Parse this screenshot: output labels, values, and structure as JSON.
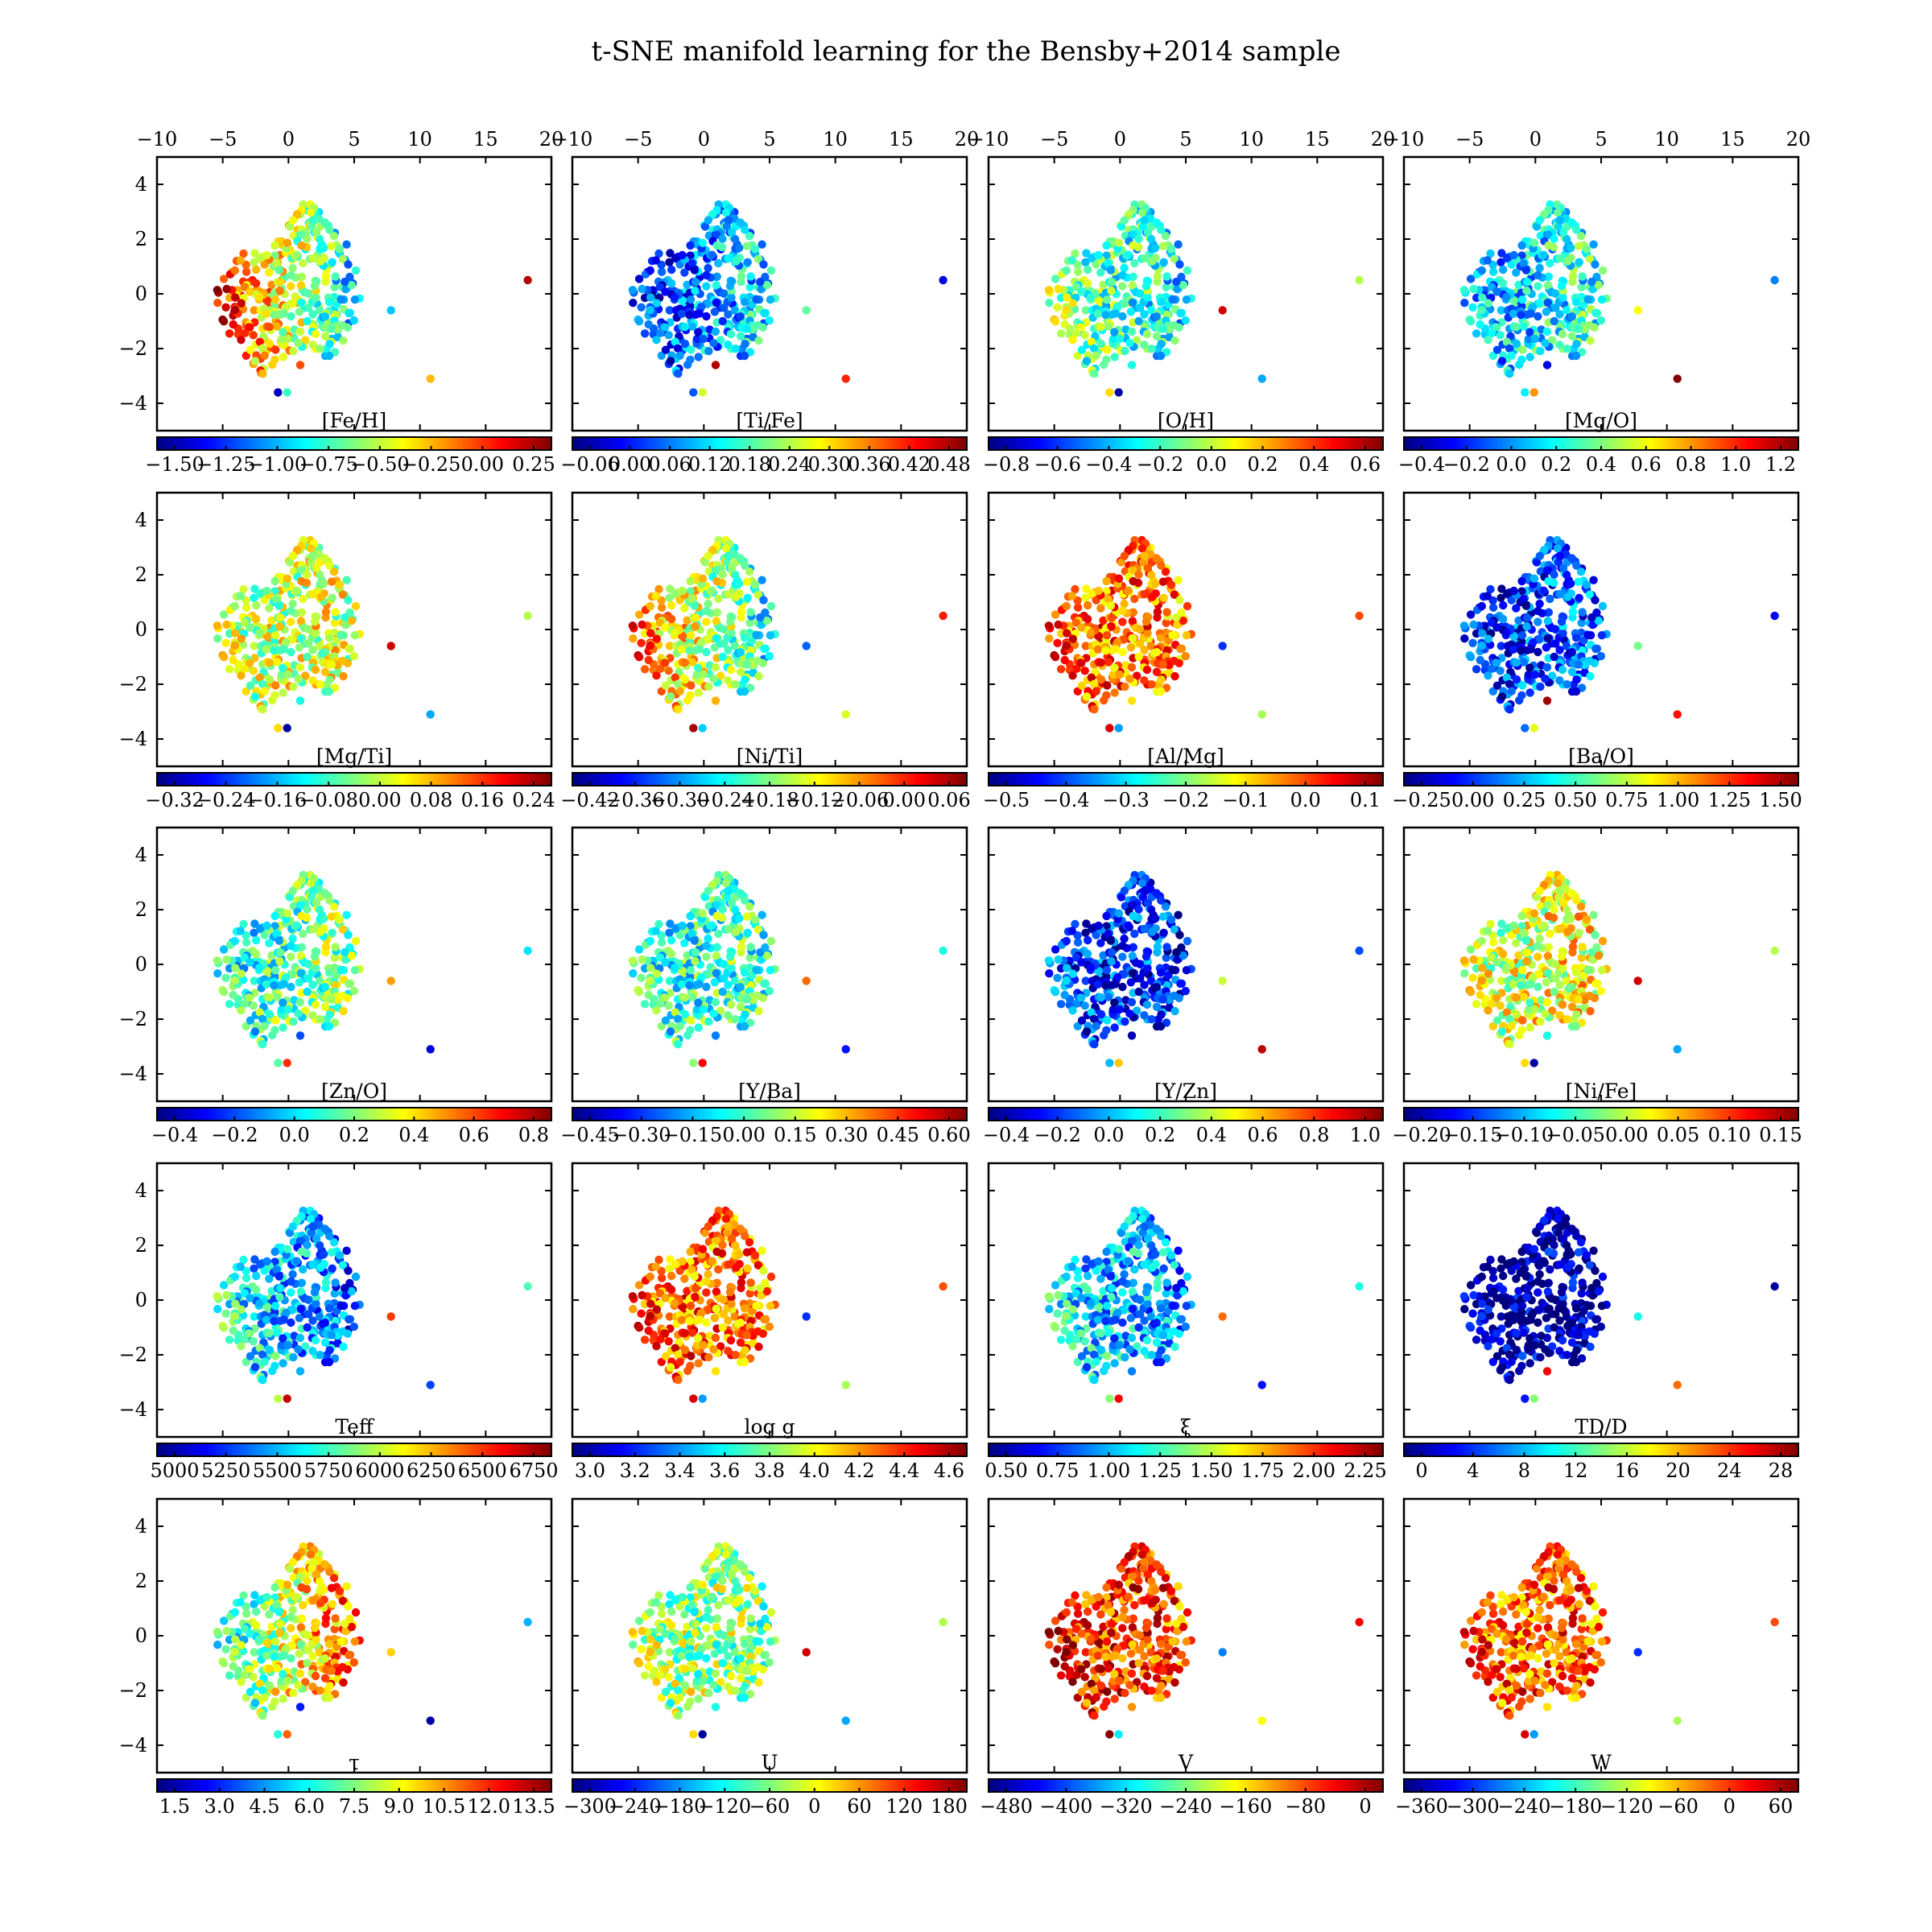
{
  "figure": {
    "title": "t-SNE manifold learning for the Bensby+2014 sample"
  },
  "chart_data": {
    "type": "scatter",
    "title": "t-SNE manifold learning for the Bensby+2014 sample",
    "layout": "5 rows x 4 columns of panels sharing axes",
    "colormap": [
      "#00007f",
      "#0000ff",
      "#007fff",
      "#00ffff",
      "#7fff7f",
      "#ffff00",
      "#ff7f00",
      "#ff0000",
      "#7f0000"
    ],
    "xlim": [
      -10,
      20
    ],
    "ylim": [
      -5,
      5
    ],
    "x_ticks": [
      "−10",
      "−5",
      "0",
      "5",
      "10",
      "15",
      "20"
    ],
    "x_tick_values": [
      -10,
      -5,
      0,
      5,
      10,
      15,
      20
    ],
    "y_ticks": [
      "4",
      "2",
      "0",
      "−2",
      "−4"
    ],
    "y_tick_values": [
      4,
      2,
      0,
      -2,
      -4
    ],
    "grid": false,
    "panels": [
      {
        "label": "[Fe/H]",
        "cbar_ticks": [
          "−1.50",
          "−1.25",
          "−1.00",
          "−0.75",
          "−0.50",
          "−0.25",
          "0.00",
          "0.25"
        ],
        "gradient": [
          0.95,
          0.3
        ]
      },
      {
        "label": "[Ti/Fe]",
        "cbar_ticks": [
          "−0.06",
          "0.00",
          "0.06",
          "0.12",
          "0.18",
          "0.24",
          "0.30",
          "0.36",
          "0.42",
          "0.48"
        ],
        "gradient": [
          0.1,
          0.4
        ]
      },
      {
        "label": "[O/H]",
        "cbar_ticks": [
          "−0.8",
          "−0.6",
          "−0.4",
          "−0.2",
          "0.0",
          "0.2",
          "0.4",
          "0.6"
        ],
        "gradient": [
          0.55,
          0.35
        ]
      },
      {
        "label": "[Mg/O]",
        "cbar_ticks": [
          "−0.4",
          "−0.2",
          "0.0",
          "0.2",
          "0.4",
          "0.6",
          "0.8",
          "1.0",
          "1.2"
        ],
        "gradient": [
          0.25,
          0.45
        ]
      },
      {
        "label": "[Mg/Ti]",
        "cbar_ticks": [
          "−0.32",
          "−0.24",
          "−0.16",
          "−0.08",
          "0.00",
          "0.08",
          "0.16",
          "0.24"
        ],
        "gradient": [
          0.55,
          0.6
        ]
      },
      {
        "label": "[Ni/Ti]",
        "cbar_ticks": [
          "−0.42",
          "−0.36",
          "−0.30",
          "−0.24",
          "−0.18",
          "−0.12",
          "−0.06",
          "0.00",
          "0.06"
        ],
        "gradient": [
          0.85,
          0.35
        ]
      },
      {
        "label": "[Al/Mg]",
        "cbar_ticks": [
          "−0.5",
          "−0.4",
          "−0.3",
          "−0.2",
          "−0.1",
          "0.0",
          "0.1"
        ],
        "gradient": [
          0.8,
          0.75
        ]
      },
      {
        "label": "[Ba/O]",
        "cbar_ticks": [
          "−0.25",
          "0.00",
          "0.25",
          "0.50",
          "0.75",
          "1.00",
          "1.25",
          "1.50"
        ],
        "gradient": [
          0.12,
          0.25
        ]
      },
      {
        "label": "[Zn/O]",
        "cbar_ticks": [
          "−0.4",
          "−0.2",
          "0.0",
          "0.2",
          "0.4",
          "0.6",
          "0.8"
        ],
        "gradient": [
          0.35,
          0.55
        ]
      },
      {
        "label": "[Y/Ba]",
        "cbar_ticks": [
          "−0.45",
          "−0.30",
          "−0.15",
          "0.00",
          "0.15",
          "0.30",
          "0.45",
          "0.60"
        ],
        "gradient": [
          0.4,
          0.45
        ]
      },
      {
        "label": "[Y/Zn]",
        "cbar_ticks": [
          "−0.4",
          "−0.2",
          "0.0",
          "0.2",
          "0.4",
          "0.6",
          "0.8",
          "1.0"
        ],
        "gradient": [
          0.2,
          0.15
        ]
      },
      {
        "label": "[Ni/Fe]",
        "cbar_ticks": [
          "−0.20",
          "−0.15",
          "−0.10",
          "−0.05",
          "0.00",
          "0.05",
          "0.10",
          "0.15"
        ],
        "gradient": [
          0.55,
          0.65
        ]
      },
      {
        "label": "Teff",
        "cbar_ticks": [
          "5000",
          "5250",
          "5500",
          "5750",
          "6000",
          "6250",
          "6500",
          "6750"
        ],
        "gradient": [
          0.45,
          0.2
        ]
      },
      {
        "label": "log g",
        "cbar_ticks": [
          "3.0",
          "3.2",
          "3.4",
          "3.6",
          "3.8",
          "4.0",
          "4.2",
          "4.4",
          "4.6"
        ],
        "gradient": [
          0.8,
          0.75
        ]
      },
      {
        "label": "ξ",
        "cbar_ticks": [
          "0.50",
          "0.75",
          "1.00",
          "1.25",
          "1.50",
          "1.75",
          "2.00",
          "2.25"
        ],
        "gradient": [
          0.4,
          0.25
        ]
      },
      {
        "label": "TD/D",
        "cbar_ticks": [
          "0",
          "4",
          "8",
          "12",
          "16",
          "20",
          "24",
          "28"
        ],
        "gradient": [
          0.03,
          0.05
        ]
      },
      {
        "label": "τ",
        "cbar_ticks": [
          "1.5",
          "3.0",
          "4.5",
          "6.0",
          "7.5",
          "9.0",
          "10.5",
          "12.0",
          "13.5"
        ],
        "gradient": [
          0.3,
          0.85
        ]
      },
      {
        "label": "U",
        "cbar_ticks": [
          "−300",
          "−240",
          "−180",
          "−120",
          "−60",
          "0",
          "60",
          "120",
          "180"
        ],
        "gradient": [
          0.55,
          0.5
        ]
      },
      {
        "label": "V",
        "cbar_ticks": [
          "−480",
          "−400",
          "−320",
          "−240",
          "−160",
          "−80",
          "0"
        ],
        "gradient": [
          0.88,
          0.8
        ]
      },
      {
        "label": "W",
        "cbar_ticks": [
          "−360",
          "−300",
          "−240",
          "−180",
          "−120",
          "−60",
          "0",
          "60"
        ],
        "gradient": [
          0.8,
          0.78
        ]
      }
    ]
  }
}
